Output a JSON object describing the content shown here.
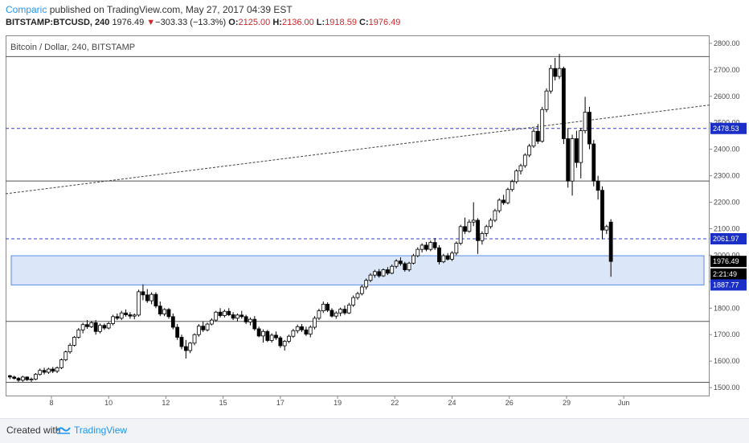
{
  "header": {
    "author": "Comparic",
    "published_text": "published on TradingView.com, May 27, 2017 04:39 EST",
    "symbol": "BITSTAMP:BTCUSD, 240",
    "last": "1976.49",
    "change_arrow": "▼",
    "change": "−303.33 (−13.3%)",
    "o_label": "O:",
    "o_value": "2125.00",
    "h_label": "H:",
    "h_value": "2136.00",
    "l_label": "L:",
    "l_value": "1918.59",
    "c_label": "C:",
    "c_value": "1976.49"
  },
  "chart_title": "Bitcoin / Dollar, 240, BITSTAMP",
  "footer": {
    "created_with": "Created with",
    "brand": "TradingView",
    "logo_icon": "tradingview-logo-icon"
  },
  "colors": {
    "up_body": "#ffffff",
    "down_body": "#000000",
    "dashed_level": "#3a3fd6",
    "label_blue": "#1a2fc8",
    "label_dark": "#000000",
    "zone_fill": "#dbe7f9",
    "zone_border": "#5b8de0",
    "brand_blue": "#2196f3"
  },
  "chart_data": {
    "type": "candlestick",
    "title": "Bitcoin / Dollar, 240, BITSTAMP",
    "y_axis": {
      "range": [
        1470,
        2830
      ],
      "ticks": [
        1500,
        1600,
        1700,
        1800,
        1900,
        2000,
        2100,
        2200,
        2300,
        2400,
        2500,
        2600,
        2700,
        2800
      ],
      "tick_labels": [
        "1500.00",
        "1600.00",
        "1700.00",
        "1800.00",
        "1900.00",
        "2000.00",
        "2100.00",
        "2200.00",
        "2300.00",
        "2400.00",
        "2500.00",
        "2600.00",
        "2700.00",
        "2800.00"
      ],
      "position": "right"
    },
    "x_axis": {
      "range": [
        6.4,
        31.0
      ],
      "ticks": [
        8,
        10,
        12,
        15,
        17,
        19,
        22,
        24,
        26,
        29,
        32
      ],
      "tick_positions": [
        8,
        10,
        12,
        14,
        16,
        18,
        20,
        22,
        24,
        26,
        28
      ],
      "tick_labels": [
        "8",
        "10",
        "12",
        "15",
        "17",
        "19",
        "22",
        "24",
        "26",
        "29",
        "Jun"
      ]
    },
    "horizontal_levels": [
      {
        "price": 2750,
        "style": "solid"
      },
      {
        "price": 2280,
        "style": "solid"
      },
      {
        "price": 1750,
        "style": "solid"
      },
      {
        "price": 1520,
        "style": "solid"
      },
      {
        "price": 2478.53,
        "style": "dashed",
        "label": "2478.53",
        "label_color": "blue"
      },
      {
        "price": 2061.97,
        "style": "dashed",
        "label": "2061.97",
        "label_color": "blue"
      }
    ],
    "price_labels": [
      {
        "price": 1976.49,
        "label": "1976.49",
        "color": "dark"
      },
      {
        "price": 1929,
        "label": "2:21:49",
        "color": "dark"
      },
      {
        "price": 1887.77,
        "label": "1887.77",
        "color": "blue"
      }
    ],
    "zone": {
      "top": 1998,
      "bottom": 1887.77
    },
    "trendline": {
      "x1": 6.4,
      "y1": 2232,
      "x2": 31.0,
      "y2": 2567,
      "style": "dotted"
    },
    "candles": [
      {
        "x": 6.55,
        "o": 1545,
        "h": 1548,
        "l": 1532,
        "c": 1540
      },
      {
        "x": 6.7,
        "o": 1540,
        "h": 1545,
        "l": 1530,
        "c": 1535
      },
      {
        "x": 6.85,
        "o": 1535,
        "h": 1540,
        "l": 1522,
        "c": 1528
      },
      {
        "x": 7.0,
        "o": 1528,
        "h": 1545,
        "l": 1522,
        "c": 1540
      },
      {
        "x": 7.15,
        "o": 1540,
        "h": 1542,
        "l": 1525,
        "c": 1530
      },
      {
        "x": 7.3,
        "o": 1530,
        "h": 1538,
        "l": 1522,
        "c": 1532
      },
      {
        "x": 7.45,
        "o": 1532,
        "h": 1555,
        "l": 1528,
        "c": 1550
      },
      {
        "x": 7.6,
        "o": 1550,
        "h": 1572,
        "l": 1545,
        "c": 1565
      },
      {
        "x": 7.75,
        "o": 1565,
        "h": 1575,
        "l": 1550,
        "c": 1558
      },
      {
        "x": 7.9,
        "o": 1558,
        "h": 1575,
        "l": 1552,
        "c": 1570
      },
      {
        "x": 8.05,
        "o": 1570,
        "h": 1578,
        "l": 1555,
        "c": 1562
      },
      {
        "x": 8.2,
        "o": 1562,
        "h": 1580,
        "l": 1555,
        "c": 1575
      },
      {
        "x": 8.35,
        "o": 1575,
        "h": 1610,
        "l": 1570,
        "c": 1605
      },
      {
        "x": 8.5,
        "o": 1605,
        "h": 1640,
        "l": 1600,
        "c": 1635
      },
      {
        "x": 8.65,
        "o": 1635,
        "h": 1668,
        "l": 1628,
        "c": 1660
      },
      {
        "x": 8.8,
        "o": 1660,
        "h": 1695,
        "l": 1655,
        "c": 1690
      },
      {
        "x": 8.95,
        "o": 1690,
        "h": 1725,
        "l": 1685,
        "c": 1718
      },
      {
        "x": 9.1,
        "o": 1718,
        "h": 1745,
        "l": 1705,
        "c": 1738
      },
      {
        "x": 9.25,
        "o": 1738,
        "h": 1755,
        "l": 1722,
        "c": 1730
      },
      {
        "x": 9.4,
        "o": 1730,
        "h": 1752,
        "l": 1725,
        "c": 1745
      },
      {
        "x": 9.55,
        "o": 1745,
        "h": 1755,
        "l": 1700,
        "c": 1712
      },
      {
        "x": 9.7,
        "o": 1712,
        "h": 1742,
        "l": 1705,
        "c": 1735
      },
      {
        "x": 9.85,
        "o": 1735,
        "h": 1742,
        "l": 1718,
        "c": 1725
      },
      {
        "x": 10.0,
        "o": 1725,
        "h": 1748,
        "l": 1720,
        "c": 1742
      },
      {
        "x": 10.15,
        "o": 1742,
        "h": 1775,
        "l": 1735,
        "c": 1768
      },
      {
        "x": 10.3,
        "o": 1768,
        "h": 1780,
        "l": 1755,
        "c": 1762
      },
      {
        "x": 10.45,
        "o": 1762,
        "h": 1790,
        "l": 1755,
        "c": 1782
      },
      {
        "x": 10.6,
        "o": 1782,
        "h": 1795,
        "l": 1768,
        "c": 1775
      },
      {
        "x": 10.75,
        "o": 1775,
        "h": 1785,
        "l": 1760,
        "c": 1770
      },
      {
        "x": 10.9,
        "o": 1770,
        "h": 1780,
        "l": 1758,
        "c": 1774
      },
      {
        "x": 11.05,
        "o": 1774,
        "h": 1870,
        "l": 1768,
        "c": 1862
      },
      {
        "x": 11.2,
        "o": 1862,
        "h": 1890,
        "l": 1830,
        "c": 1850
      },
      {
        "x": 11.35,
        "o": 1850,
        "h": 1872,
        "l": 1820,
        "c": 1828
      },
      {
        "x": 11.5,
        "o": 1828,
        "h": 1860,
        "l": 1815,
        "c": 1852
      },
      {
        "x": 11.65,
        "o": 1852,
        "h": 1860,
        "l": 1800,
        "c": 1808
      },
      {
        "x": 11.8,
        "o": 1808,
        "h": 1825,
        "l": 1770,
        "c": 1778
      },
      {
        "x": 11.95,
        "o": 1778,
        "h": 1800,
        "l": 1770,
        "c": 1795
      },
      {
        "x": 12.1,
        "o": 1795,
        "h": 1800,
        "l": 1760,
        "c": 1768
      },
      {
        "x": 12.25,
        "o": 1768,
        "h": 1780,
        "l": 1720,
        "c": 1728
      },
      {
        "x": 12.4,
        "o": 1728,
        "h": 1740,
        "l": 1680,
        "c": 1690
      },
      {
        "x": 12.55,
        "o": 1690,
        "h": 1700,
        "l": 1645,
        "c": 1655
      },
      {
        "x": 12.7,
        "o": 1655,
        "h": 1680,
        "l": 1610,
        "c": 1640
      },
      {
        "x": 12.85,
        "o": 1640,
        "h": 1672,
        "l": 1630,
        "c": 1668
      },
      {
        "x": 13.0,
        "o": 1668,
        "h": 1705,
        "l": 1660,
        "c": 1700
      },
      {
        "x": 13.15,
        "o": 1700,
        "h": 1740,
        "l": 1692,
        "c": 1732
      },
      {
        "x": 13.3,
        "o": 1732,
        "h": 1750,
        "l": 1710,
        "c": 1718
      },
      {
        "x": 13.45,
        "o": 1718,
        "h": 1745,
        "l": 1712,
        "c": 1740
      },
      {
        "x": 13.6,
        "o": 1740,
        "h": 1762,
        "l": 1735,
        "c": 1755
      },
      {
        "x": 13.75,
        "o": 1755,
        "h": 1790,
        "l": 1750,
        "c": 1785
      },
      {
        "x": 13.9,
        "o": 1785,
        "h": 1800,
        "l": 1765,
        "c": 1772
      },
      {
        "x": 14.05,
        "o": 1772,
        "h": 1795,
        "l": 1765,
        "c": 1788
      },
      {
        "x": 14.2,
        "o": 1788,
        "h": 1800,
        "l": 1770,
        "c": 1775
      },
      {
        "x": 14.35,
        "o": 1775,
        "h": 1785,
        "l": 1755,
        "c": 1762
      },
      {
        "x": 14.5,
        "o": 1762,
        "h": 1780,
        "l": 1750,
        "c": 1774
      },
      {
        "x": 14.65,
        "o": 1774,
        "h": 1790,
        "l": 1760,
        "c": 1768
      },
      {
        "x": 14.8,
        "o": 1768,
        "h": 1775,
        "l": 1740,
        "c": 1748
      },
      {
        "x": 14.95,
        "o": 1748,
        "h": 1765,
        "l": 1735,
        "c": 1758
      },
      {
        "x": 15.1,
        "o": 1758,
        "h": 1770,
        "l": 1715,
        "c": 1722
      },
      {
        "x": 15.25,
        "o": 1722,
        "h": 1730,
        "l": 1690,
        "c": 1695
      },
      {
        "x": 15.4,
        "o": 1695,
        "h": 1720,
        "l": 1670,
        "c": 1712
      },
      {
        "x": 15.55,
        "o": 1712,
        "h": 1718,
        "l": 1672,
        "c": 1678
      },
      {
        "x": 15.7,
        "o": 1678,
        "h": 1705,
        "l": 1670,
        "c": 1698
      },
      {
        "x": 15.85,
        "o": 1698,
        "h": 1712,
        "l": 1680,
        "c": 1688
      },
      {
        "x": 16.0,
        "o": 1688,
        "h": 1695,
        "l": 1650,
        "c": 1658
      },
      {
        "x": 16.15,
        "o": 1658,
        "h": 1680,
        "l": 1640,
        "c": 1675
      },
      {
        "x": 16.3,
        "o": 1675,
        "h": 1700,
        "l": 1668,
        "c": 1694
      },
      {
        "x": 16.45,
        "o": 1694,
        "h": 1722,
        "l": 1688,
        "c": 1715
      },
      {
        "x": 16.6,
        "o": 1715,
        "h": 1738,
        "l": 1705,
        "c": 1730
      },
      {
        "x": 16.75,
        "o": 1730,
        "h": 1740,
        "l": 1710,
        "c": 1718
      },
      {
        "x": 16.9,
        "o": 1718,
        "h": 1730,
        "l": 1695,
        "c": 1702
      },
      {
        "x": 17.05,
        "o": 1702,
        "h": 1735,
        "l": 1690,
        "c": 1728
      },
      {
        "x": 17.2,
        "o": 1728,
        "h": 1770,
        "l": 1720,
        "c": 1762
      },
      {
        "x": 17.35,
        "o": 1762,
        "h": 1798,
        "l": 1755,
        "c": 1790
      },
      {
        "x": 17.5,
        "o": 1790,
        "h": 1825,
        "l": 1782,
        "c": 1815
      },
      {
        "x": 17.65,
        "o": 1815,
        "h": 1822,
        "l": 1785,
        "c": 1792
      },
      {
        "x": 17.8,
        "o": 1792,
        "h": 1800,
        "l": 1765,
        "c": 1770
      },
      {
        "x": 17.95,
        "o": 1770,
        "h": 1788,
        "l": 1760,
        "c": 1782
      },
      {
        "x": 18.1,
        "o": 1782,
        "h": 1802,
        "l": 1770,
        "c": 1796
      },
      {
        "x": 18.25,
        "o": 1796,
        "h": 1810,
        "l": 1775,
        "c": 1782
      },
      {
        "x": 18.4,
        "o": 1782,
        "h": 1820,
        "l": 1778,
        "c": 1812
      },
      {
        "x": 18.55,
        "o": 1812,
        "h": 1848,
        "l": 1805,
        "c": 1840
      },
      {
        "x": 18.7,
        "o": 1840,
        "h": 1862,
        "l": 1832,
        "c": 1855
      },
      {
        "x": 18.85,
        "o": 1855,
        "h": 1888,
        "l": 1848,
        "c": 1880
      },
      {
        "x": 19.0,
        "o": 1880,
        "h": 1912,
        "l": 1870,
        "c": 1905
      },
      {
        "x": 19.15,
        "o": 1905,
        "h": 1932,
        "l": 1898,
        "c": 1925
      },
      {
        "x": 19.3,
        "o": 1925,
        "h": 1945,
        "l": 1915,
        "c": 1938
      },
      {
        "x": 19.45,
        "o": 1938,
        "h": 1948,
        "l": 1915,
        "c": 1922
      },
      {
        "x": 19.6,
        "o": 1922,
        "h": 1950,
        "l": 1918,
        "c": 1945
      },
      {
        "x": 19.75,
        "o": 1945,
        "h": 1955,
        "l": 1925,
        "c": 1932
      },
      {
        "x": 19.9,
        "o": 1932,
        "h": 1965,
        "l": 1928,
        "c": 1958
      },
      {
        "x": 20.05,
        "o": 1958,
        "h": 1985,
        "l": 1950,
        "c": 1978
      },
      {
        "x": 20.2,
        "o": 1978,
        "h": 1992,
        "l": 1960,
        "c": 1968
      },
      {
        "x": 20.35,
        "o": 1968,
        "h": 1975,
        "l": 1938,
        "c": 1945
      },
      {
        "x": 20.5,
        "o": 1945,
        "h": 1975,
        "l": 1938,
        "c": 1970
      },
      {
        "x": 20.65,
        "o": 1970,
        "h": 2005,
        "l": 1965,
        "c": 1998
      },
      {
        "x": 20.8,
        "o": 1998,
        "h": 2030,
        "l": 1992,
        "c": 2022
      },
      {
        "x": 20.95,
        "o": 2022,
        "h": 2045,
        "l": 2010,
        "c": 2038
      },
      {
        "x": 21.1,
        "o": 2038,
        "h": 2050,
        "l": 2015,
        "c": 2022
      },
      {
        "x": 21.25,
        "o": 2022,
        "h": 2055,
        "l": 2015,
        "c": 2048
      },
      {
        "x": 21.4,
        "o": 2048,
        "h": 2065,
        "l": 2020,
        "c": 2028
      },
      {
        "x": 21.55,
        "o": 2028,
        "h": 2038,
        "l": 1965,
        "c": 1975
      },
      {
        "x": 21.7,
        "o": 1975,
        "h": 2005,
        "l": 1970,
        "c": 1998
      },
      {
        "x": 21.85,
        "o": 1998,
        "h": 2008,
        "l": 1980,
        "c": 1985
      },
      {
        "x": 22.0,
        "o": 1985,
        "h": 2015,
        "l": 1978,
        "c": 2008
      },
      {
        "x": 22.15,
        "o": 2008,
        "h": 2052,
        "l": 2000,
        "c": 2045
      },
      {
        "x": 22.3,
        "o": 2045,
        "h": 2115,
        "l": 2038,
        "c": 2108
      },
      {
        "x": 22.45,
        "o": 2108,
        "h": 2142,
        "l": 2080,
        "c": 2090
      },
      {
        "x": 22.6,
        "o": 2090,
        "h": 2135,
        "l": 2085,
        "c": 2125
      },
      {
        "x": 22.75,
        "o": 2125,
        "h": 2200,
        "l": 2110,
        "c": 2132
      },
      {
        "x": 22.9,
        "o": 2132,
        "h": 2140,
        "l": 2005,
        "c": 2055
      },
      {
        "x": 23.05,
        "o": 2055,
        "h": 2090,
        "l": 2040,
        "c": 2082
      },
      {
        "x": 23.2,
        "o": 2082,
        "h": 2115,
        "l": 2070,
        "c": 2108
      },
      {
        "x": 23.35,
        "o": 2108,
        "h": 2140,
        "l": 2100,
        "c": 2132
      },
      {
        "x": 23.5,
        "o": 2132,
        "h": 2175,
        "l": 2125,
        "c": 2168
      },
      {
        "x": 23.65,
        "o": 2168,
        "h": 2215,
        "l": 2160,
        "c": 2208
      },
      {
        "x": 23.8,
        "o": 2208,
        "h": 2228,
        "l": 2190,
        "c": 2198
      },
      {
        "x": 23.95,
        "o": 2198,
        "h": 2255,
        "l": 2192,
        "c": 2248
      },
      {
        "x": 24.1,
        "o": 2248,
        "h": 2285,
        "l": 2240,
        "c": 2278
      },
      {
        "x": 24.25,
        "o": 2278,
        "h": 2325,
        "l": 2270,
        "c": 2318
      },
      {
        "x": 24.4,
        "o": 2318,
        "h": 2345,
        "l": 2305,
        "c": 2338
      },
      {
        "x": 24.55,
        "o": 2338,
        "h": 2385,
        "l": 2330,
        "c": 2378
      },
      {
        "x": 24.7,
        "o": 2378,
        "h": 2420,
        "l": 2370,
        "c": 2412
      },
      {
        "x": 24.85,
        "o": 2412,
        "h": 2480,
        "l": 2405,
        "c": 2468
      },
      {
        "x": 25.0,
        "o": 2468,
        "h": 2495,
        "l": 2420,
        "c": 2430
      },
      {
        "x": 25.15,
        "o": 2430,
        "h": 2560,
        "l": 2425,
        "c": 2550
      },
      {
        "x": 25.3,
        "o": 2550,
        "h": 2630,
        "l": 2540,
        "c": 2620
      },
      {
        "x": 25.45,
        "o": 2620,
        "h": 2718,
        "l": 2610,
        "c": 2705
      },
      {
        "x": 25.6,
        "o": 2705,
        "h": 2745,
        "l": 2660,
        "c": 2675
      },
      {
        "x": 25.75,
        "o": 2675,
        "h": 2760,
        "l": 2665,
        "c": 2705
      },
      {
        "x": 25.9,
        "o": 2705,
        "h": 2712,
        "l": 2420,
        "c": 2440
      },
      {
        "x": 26.05,
        "o": 2440,
        "h": 2480,
        "l": 2255,
        "c": 2280
      },
      {
        "x": 26.2,
        "o": 2280,
        "h": 2455,
        "l": 2225,
        "c": 2440
      },
      {
        "x": 26.35,
        "o": 2440,
        "h": 2470,
        "l": 2330,
        "c": 2350
      },
      {
        "x": 26.5,
        "o": 2350,
        "h": 2480,
        "l": 2290,
        "c": 2470
      },
      {
        "x": 26.65,
        "o": 2470,
        "h": 2598,
        "l": 2460,
        "c": 2540
      },
      {
        "x": 26.8,
        "o": 2540,
        "h": 2560,
        "l": 2400,
        "c": 2420
      },
      {
        "x": 26.95,
        "o": 2420,
        "h": 2435,
        "l": 2260,
        "c": 2280
      },
      {
        "x": 27.1,
        "o": 2280,
        "h": 2300,
        "l": 2210,
        "c": 2245
      },
      {
        "x": 27.25,
        "o": 2245,
        "h": 2260,
        "l": 2060,
        "c": 2095
      },
      {
        "x": 27.4,
        "o": 2095,
        "h": 2115,
        "l": 2080,
        "c": 2108
      },
      {
        "x": 27.55,
        "o": 2125,
        "h": 2136,
        "l": 1918.59,
        "c": 1976.49
      }
    ]
  }
}
